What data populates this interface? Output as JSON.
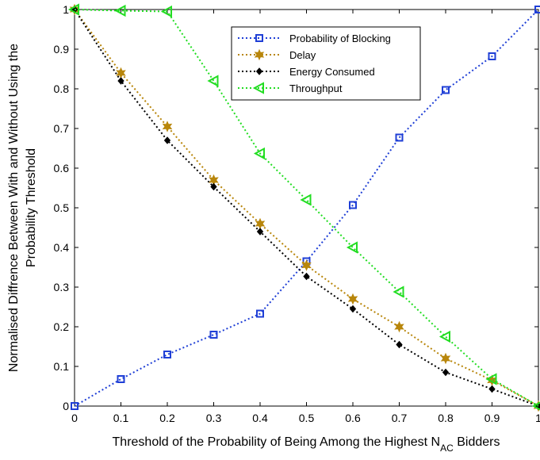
{
  "chart_data": {
    "type": "line",
    "title": "",
    "xlabel": {
      "prefix": "Threshold of the Probability of Being Among the Highest N",
      "subscript": "AC",
      "suffix": " Bidders"
    },
    "ylabel": {
      "line1": "Normalised Diffrence Between With and Without Using the",
      "line2": "Probability Threshold"
    },
    "xlim": [
      0,
      1
    ],
    "ylim": [
      0,
      1
    ],
    "xticks": [
      "0",
      "0.1",
      "0.2",
      "0.3",
      "0.4",
      "0.5",
      "0.6",
      "0.7",
      "0.8",
      "0.9",
      "1"
    ],
    "yticks": [
      "0",
      "0.1",
      "0.2",
      "0.3",
      "0.4",
      "0.5",
      "0.6",
      "0.7",
      "0.8",
      "0.9",
      "1"
    ],
    "grid": false,
    "legend_position": "top-center",
    "x": [
      0,
      0.1,
      0.2,
      0.3,
      0.4,
      0.5,
      0.6,
      0.7,
      0.8,
      0.9,
      1.0
    ],
    "series": [
      {
        "name": "Probability of Blocking",
        "color": "#1f3fd6",
        "marker": "square",
        "values": [
          0.0,
          0.068,
          0.13,
          0.18,
          0.233,
          0.365,
          0.507,
          0.677,
          0.797,
          0.882,
          1.0
        ]
      },
      {
        "name": "Delay",
        "color": "#b8860b",
        "marker": "hexagram",
        "values": [
          1.0,
          0.84,
          0.705,
          0.57,
          0.46,
          0.355,
          0.27,
          0.2,
          0.12,
          0.065,
          0.0
        ]
      },
      {
        "name": "Energy Consumed",
        "color": "#000000",
        "marker": "diamond",
        "values": [
          1.0,
          0.82,
          0.67,
          0.553,
          0.44,
          0.327,
          0.245,
          0.155,
          0.085,
          0.043,
          0.0
        ]
      },
      {
        "name": "Throughput",
        "color": "#22dd22",
        "marker": "triangle-left",
        "values": [
          1.0,
          0.997,
          0.995,
          0.82,
          0.637,
          0.52,
          0.4,
          0.288,
          0.175,
          0.068,
          0.0
        ]
      }
    ]
  }
}
